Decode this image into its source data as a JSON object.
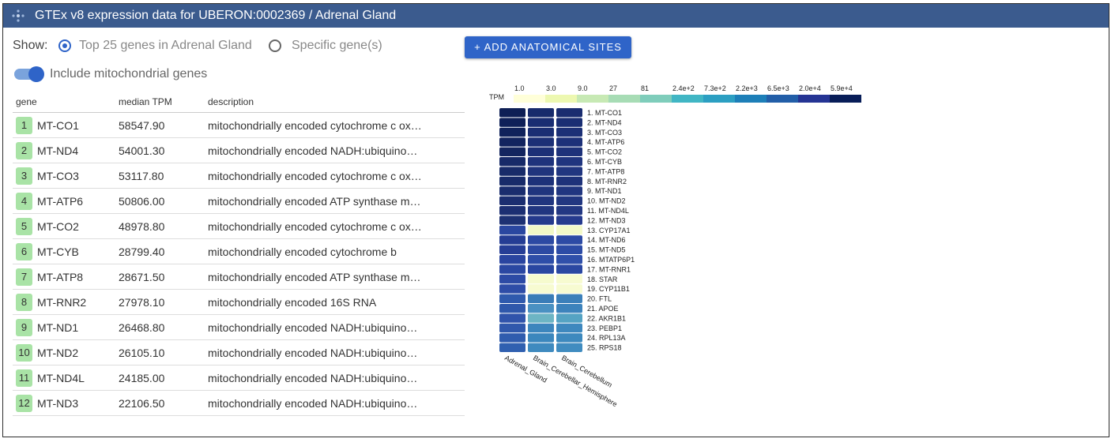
{
  "header": {
    "title": "GTEx v8 expression data for UBERON:0002369 / Adrenal Gland"
  },
  "controls": {
    "show_label": "Show:",
    "option_top": "Top 25 genes in Adrenal Gland",
    "option_specific": "Specific gene(s)",
    "selected": "top",
    "include_mito_label": "Include mitochondrial genes",
    "include_mito_on": true,
    "add_button_label": "+ ADD ANATOMICAL SITES"
  },
  "table": {
    "columns": [
      "gene",
      "median TPM",
      "description"
    ],
    "rows": [
      {
        "rank": "1",
        "gene": "MT-CO1",
        "tpm": "58547.90",
        "desc": "mitochondrially encoded cytochrome c ox…"
      },
      {
        "rank": "2",
        "gene": "MT-ND4",
        "tpm": "54001.30",
        "desc": "mitochondrially encoded NADH:ubiquino…"
      },
      {
        "rank": "3",
        "gene": "MT-CO3",
        "tpm": "53117.80",
        "desc": "mitochondrially encoded cytochrome c ox…"
      },
      {
        "rank": "4",
        "gene": "MT-ATP6",
        "tpm": "50806.00",
        "desc": "mitochondrially encoded ATP synthase m…"
      },
      {
        "rank": "5",
        "gene": "MT-CO2",
        "tpm": "48978.80",
        "desc": "mitochondrially encoded cytochrome c ox…"
      },
      {
        "rank": "6",
        "gene": "MT-CYB",
        "tpm": "28799.40",
        "desc": "mitochondrially encoded cytochrome b"
      },
      {
        "rank": "7",
        "gene": "MT-ATP8",
        "tpm": "28671.50",
        "desc": "mitochondrially encoded ATP synthase m…"
      },
      {
        "rank": "8",
        "gene": "MT-RNR2",
        "tpm": "27978.10",
        "desc": "mitochondrially encoded 16S RNA"
      },
      {
        "rank": "9",
        "gene": "MT-ND1",
        "tpm": "26468.80",
        "desc": "mitochondrially encoded NADH:ubiquino…"
      },
      {
        "rank": "10",
        "gene": "MT-ND2",
        "tpm": "26105.10",
        "desc": "mitochondrially encoded NADH:ubiquino…"
      },
      {
        "rank": "11",
        "gene": "MT-ND4L",
        "tpm": "24185.00",
        "desc": "mitochondrially encoded NADH:ubiquino…"
      },
      {
        "rank": "12",
        "gene": "MT-ND3",
        "tpm": "22106.50",
        "desc": "mitochondrially encoded NADH:ubiquino…"
      }
    ]
  },
  "heatmap": {
    "legend_title": "TPM",
    "legend_ticks": [
      "1.0",
      "3.0",
      "9.0",
      "27",
      "81",
      "2.4e+2",
      "7.3e+2",
      "2.2e+3",
      "6.5e+3",
      "2.0e+4",
      "5.9e+4"
    ],
    "legend_colors": [
      "#ffffd9",
      "#edf8b1",
      "#c7e9b4",
      "#a7dcb5",
      "#7fcdbb",
      "#41b6c4",
      "#2c9fc2",
      "#1d7fb8",
      "#225ea8",
      "#253494",
      "#081d58"
    ],
    "columns": [
      "Adrenal_Gland",
      "Brain_Cerebellar_Hemisphere",
      "Brain_Cerebellum"
    ],
    "genes": [
      "1. MT-CO1",
      "2. MT-ND4",
      "3. MT-CO3",
      "4. MT-ATP6",
      "5. MT-CO2",
      "6. MT-CYB",
      "7. MT-ATP8",
      "8. MT-RNR2",
      "9. MT-ND1",
      "10. MT-ND2",
      "11. MT-ND4L",
      "12. MT-ND3",
      "13. CYP17A1",
      "14. MT-ND6",
      "15. MT-ND5",
      "16. MTATP6P1",
      "17. MT-RNR1",
      "18. STAR",
      "19. CYP11B1",
      "20. FTL",
      "21. APOE",
      "22. AKR1B1",
      "23. PEBP1",
      "24. RPL13A",
      "25. RPS18"
    ],
    "cell_colors": [
      [
        "#0e1f55",
        "#172b6c",
        "#1a2d70"
      ],
      [
        "#0f2058",
        "#192d72",
        "#1a2e73"
      ],
      [
        "#10225b",
        "#1a2e73",
        "#1c3076"
      ],
      [
        "#12245f",
        "#1c3076",
        "#1d3179"
      ],
      [
        "#13255f",
        "#1c3077",
        "#1e327a"
      ],
      [
        "#172a68",
        "#1f337c",
        "#20357f"
      ],
      [
        "#182b69",
        "#20347d",
        "#213680"
      ],
      [
        "#182b6a",
        "#1d3179",
        "#1e327a"
      ],
      [
        "#1a2d6e",
        "#20357e",
        "#213680"
      ],
      [
        "#1b2e70",
        "#20357f",
        "#223781"
      ],
      [
        "#1c2f72",
        "#213680",
        "#233883"
      ],
      [
        "#1d3173",
        "#253a8c",
        "#263b8e"
      ],
      [
        "#2a47a0",
        "#f2f8c6",
        "#f3f9c8"
      ],
      [
        "#253d94",
        "#2c4aa3",
        "#2d4ba5"
      ],
      [
        "#263e96",
        "#2c4aa3",
        "#2d4ca6"
      ],
      [
        "#2a45a0",
        "#2e4ea8",
        "#3050aa"
      ],
      [
        "#2b48a2",
        "#2a47a1",
        "#2b48a2"
      ],
      [
        "#2d4ba5",
        "#f6fbce",
        "#f7fbd0"
      ],
      [
        "#2e4da7",
        "#f7fbd1",
        "#f7fbd1"
      ],
      [
        "#2f5aad",
        "#3a7db8",
        "#3c80ba"
      ],
      [
        "#2f58ab",
        "#4a91c2",
        "#3d83bc"
      ],
      [
        "#3054ab",
        "#6db5c4",
        "#55a3c3"
      ],
      [
        "#3058ac",
        "#3d86bd",
        "#3e88be"
      ],
      [
        "#305cae",
        "#3c87bd",
        "#3d89be"
      ],
      [
        "#3060b0",
        "#3f8abf",
        "#408cc0"
      ]
    ]
  }
}
